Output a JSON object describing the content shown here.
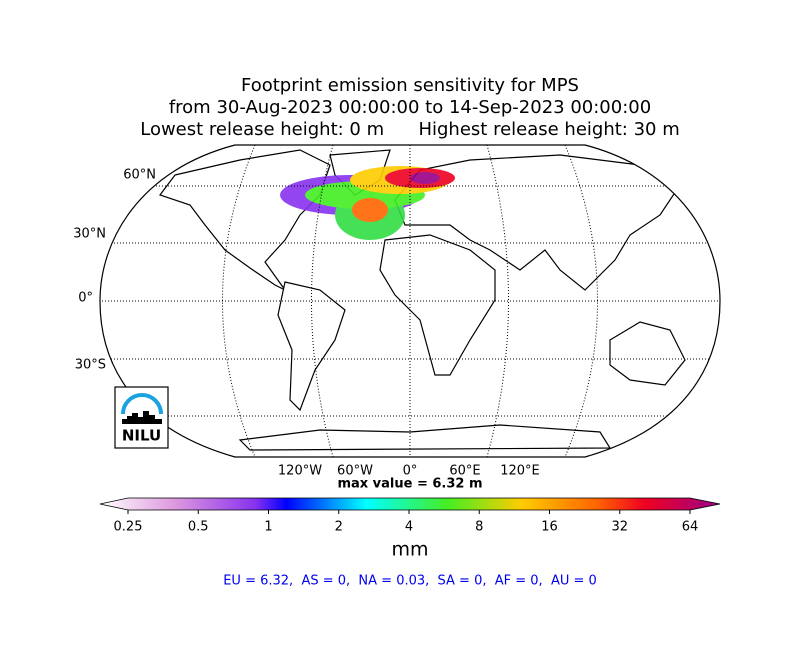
{
  "title": [
    "Footprint emission sensitivity for MPS",
    "from 30-Aug-2023 00:00:00 to 14-Sep-2023 00:00:00",
    "Lowest release height: 0 m      Highest release height: 30 m"
  ],
  "lat_labels": [
    "60°N",
    "30°N",
    "0°",
    "30°S"
  ],
  "lon_labels": [
    "120°W",
    "60°W",
    "0°",
    "60°E",
    "120°E"
  ],
  "max_value": "max value = 6.32 m",
  "logo": "NILU",
  "colorbar": {
    "ticks": [
      0.25,
      0.5,
      1,
      2,
      4,
      8,
      16,
      32,
      64
    ],
    "log_scale": true,
    "label": "mm"
  },
  "footer": "EU = 6.32,  AS = 0,  NA = 0.03,  SA = 0,  AF = 0,  AU = 0"
}
